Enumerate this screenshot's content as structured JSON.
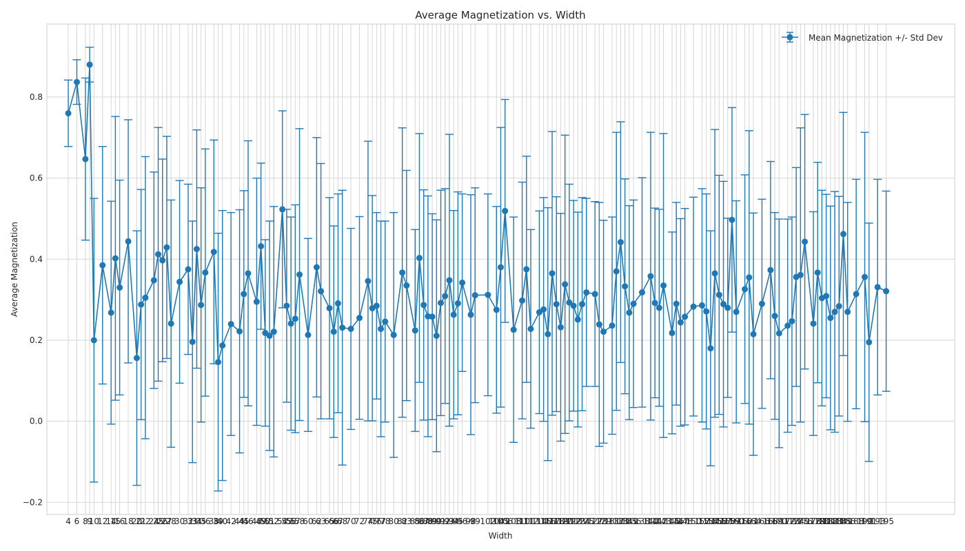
{
  "chart_data": {
    "type": "line",
    "title": "Average Magnetization vs. Width",
    "xlabel": "Width",
    "ylabel": "Average Magnetization",
    "xlim": [
      -1,
      211
    ],
    "ylim": [
      -0.23,
      0.98
    ],
    "yticks": [
      -0.2,
      0.0,
      0.2,
      0.4,
      0.6,
      0.8
    ],
    "yticks_labels": [
      "−0.2",
      "0.0",
      "0.2",
      "0.4",
      "0.6",
      "0.8"
    ],
    "grid": true,
    "legend": {
      "position": "top-right",
      "entries": [
        "Mean Magnetization +/- Std Dev"
      ]
    },
    "colors": {
      "series": "#1f77b4",
      "grid": "#d6d6d6",
      "text": "#262626"
    },
    "series": [
      {
        "name": "Mean Magnetization +/- Std Dev",
        "x": [
          4,
          6,
          8,
          9,
          10,
          12,
          14,
          15,
          16,
          18,
          20,
          21,
          22,
          24,
          25,
          26,
          27,
          28,
          30,
          32,
          33,
          34,
          35,
          36,
          38,
          39,
          40,
          42,
          44,
          45,
          46,
          48,
          49,
          50,
          51,
          52,
          54,
          55,
          56,
          57,
          58,
          60,
          62,
          63,
          65,
          66,
          67,
          68,
          70,
          72,
          74,
          75,
          76,
          77,
          78,
          80,
          82,
          83,
          85,
          86,
          87,
          88,
          89,
          90,
          91,
          92,
          93,
          94,
          95,
          96,
          98,
          99,
          102,
          104,
          105,
          106,
          108,
          110,
          111,
          112,
          114,
          115,
          116,
          117,
          118,
          119,
          120,
          121,
          122,
          123,
          124,
          125,
          127,
          128,
          129,
          131,
          132,
          133,
          134,
          135,
          136,
          138,
          140,
          141,
          142,
          143,
          145,
          146,
          147,
          148,
          150,
          152,
          153,
          154,
          155,
          156,
          157,
          158,
          159,
          160,
          162,
          163,
          164,
          166,
          168,
          169,
          170,
          172,
          173,
          174,
          175,
          176,
          178,
          179,
          180,
          181,
          182,
          183,
          184,
          185,
          186,
          188,
          190,
          191,
          193,
          195
        ],
        "y": [
          0.76,
          0.837,
          0.647,
          0.88,
          0.2,
          0.385,
          0.268,
          0.402,
          0.33,
          0.444,
          0.156,
          0.288,
          0.305,
          0.348,
          0.412,
          0.397,
          0.429,
          0.241,
          0.344,
          0.375,
          0.196,
          0.425,
          0.287,
          0.367,
          0.418,
          0.146,
          0.187,
          0.24,
          0.222,
          0.314,
          0.365,
          0.295,
          0.432,
          0.218,
          0.211,
          0.221,
          0.523,
          0.285,
          0.241,
          0.253,
          0.362,
          0.213,
          0.38,
          0.321,
          0.279,
          0.221,
          0.291,
          0.231,
          0.228,
          0.255,
          0.346,
          0.279,
          0.285,
          0.228,
          0.246,
          0.213,
          0.367,
          0.335,
          0.224,
          0.403,
          0.287,
          0.259,
          0.258,
          0.211,
          0.292,
          0.309,
          0.348,
          0.263,
          0.291,
          0.342,
          0.263,
          0.311,
          0.312,
          0.275,
          0.38,
          0.519,
          0.226,
          0.298,
          0.375,
          0.228,
          0.269,
          0.276,
          0.215,
          0.365,
          0.289,
          0.232,
          0.338,
          0.293,
          0.285,
          0.251,
          0.289,
          0.318,
          0.314,
          0.239,
          0.221,
          0.236,
          0.37,
          0.442,
          0.333,
          0.268,
          0.29,
          0.318,
          0.358,
          0.292,
          0.28,
          0.335,
          0.218,
          0.29,
          0.244,
          0.258,
          0.283,
          0.286,
          0.271,
          0.18,
          0.365,
          0.312,
          0.289,
          0.28,
          0.497,
          0.27,
          0.326,
          0.355,
          0.215,
          0.29,
          0.373,
          0.26,
          0.217,
          0.236,
          0.247,
          0.356,
          0.361,
          0.443,
          0.241,
          0.367,
          0.304,
          0.309,
          0.255,
          0.27,
          0.284,
          0.462,
          0.27,
          0.314,
          0.356,
          0.195,
          0.331,
          0.321
        ],
        "error": [
          0.082,
          0.055,
          0.2,
          0.043,
          0.35,
          0.293,
          0.275,
          0.35,
          0.265,
          0.3,
          0.314,
          0.284,
          0.348,
          0.267,
          0.313,
          0.25,
          0.274,
          0.305,
          0.25,
          0.21,
          0.298,
          0.294,
          0.289,
          0.305,
          0.276,
          0.318,
          0.333,
          0.275,
          0.3,
          0.255,
          0.327,
          0.305,
          0.205,
          0.23,
          0.283,
          0.309,
          0.243,
          0.238,
          0.263,
          0.281,
          0.36,
          0.238,
          0.32,
          0.315,
          0.273,
          0.261,
          0.27,
          0.339,
          0.248,
          0.25,
          0.345,
          0.278,
          0.23,
          0.266,
          0.248,
          0.302,
          0.357,
          0.284,
          0.249,
          0.307,
          0.284,
          0.297,
          0.254,
          0.286,
          0.278,
          0.265,
          0.36,
          0.257,
          0.275,
          0.219,
          0.296,
          0.265,
          0.249,
          0.255,
          0.345,
          0.275,
          0.278,
          0.292,
          0.279,
          0.245,
          0.25,
          0.276,
          0.312,
          0.35,
          0.265,
          0.281,
          0.368,
          0.292,
          0.26,
          0.265,
          0.263,
          0.232,
          0.228,
          0.301,
          0.275,
          0.268,
          0.343,
          0.297,
          0.265,
          0.264,
          0.256,
          0.283,
          0.355,
          0.234,
          0.243,
          0.375,
          0.249,
          0.25,
          0.256,
          0.267,
          0.27,
          0.288,
          0.29,
          0.29,
          0.355,
          0.295,
          0.303,
          0.221,
          0.277,
          0.274,
          0.282,
          0.362,
          0.299,
          0.258,
          0.268,
          0.255,
          0.282,
          0.263,
          0.257,
          0.27,
          0.363,
          0.314,
          0.276,
          0.272,
          0.266,
          0.251,
          0.276,
          0.297,
          0.271,
          0.3,
          0.27,
          0.283,
          0.357,
          0.294,
          0.266,
          0.247
        ]
      }
    ]
  }
}
